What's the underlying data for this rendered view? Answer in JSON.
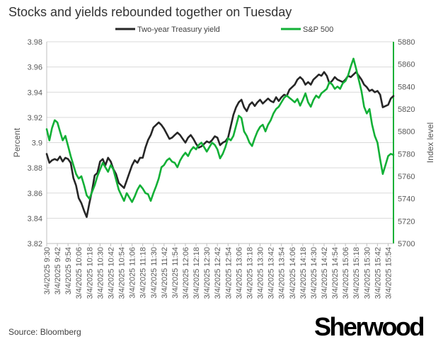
{
  "chart_data": {
    "type": "line",
    "title": "Stocks and yields rebounded together on Tuesday",
    "source": "Source: Bloomberg",
    "brand": "Sherwood",
    "y_left_label": "Percent",
    "y_right_label": "Index level",
    "y_left_lim": [
      3.82,
      3.98
    ],
    "y_left_ticks": [
      "3.82",
      "3.84",
      "3.86",
      "3.88",
      "3.9",
      "3.92",
      "3.94",
      "3.96",
      "3.98"
    ],
    "y_right_lim": [
      5700,
      5880
    ],
    "y_right_ticks": [
      "5700",
      "5720",
      "5740",
      "5760",
      "5780",
      "5800",
      "5820",
      "5840",
      "5860",
      "5880"
    ],
    "x_ticks": [
      "3/4/2025 9:30",
      "3/4/2025 9:42",
      "3/4/2025 9:54",
      "3/4/2025 10:06",
      "3/4/2025 10:18",
      "3/4/2025 10:30",
      "3/4/2025 10:42",
      "3/4/2025 10:54",
      "3/4/2025 11:06",
      "3/4/2025 11:18",
      "3/4/2025 11:30",
      "3/4/2025 11:42",
      "3/4/2025 11:54",
      "3/4/2025 12:06",
      "3/4/2025 12:18",
      "3/4/2025 12:30",
      "3/4/2025 12:42",
      "3/4/2025 12:54",
      "3/4/2025 13:06",
      "3/4/2025 13:18",
      "3/4/2025 13:30",
      "3/4/2025 13:42",
      "3/4/2025 13:54",
      "3/4/2025 14:06",
      "3/4/2025 14:18",
      "3/4/2025 14:30",
      "3/4/2025 14:42",
      "3/4/2025 14:54",
      "3/4/2025 15:06",
      "3/4/2025 15:18",
      "3/4/2025 15:30",
      "3/4/2025 15:42",
      "3/4/2025 15:54"
    ],
    "grid": true,
    "legend_position": "top",
    "series": [
      {
        "name": "Two-year Treasury yield",
        "color": "#262626",
        "axis": "left",
        "points": [
          [
            "9:30",
            3.891
          ],
          [
            "9:33",
            3.884
          ],
          [
            "9:36",
            3.886
          ],
          [
            "9:39",
            3.887
          ],
          [
            "9:42",
            3.886
          ],
          [
            "9:45",
            3.889
          ],
          [
            "9:48",
            3.885
          ],
          [
            "9:51",
            3.888
          ],
          [
            "9:54",
            3.887
          ],
          [
            "9:57",
            3.884
          ],
          [
            "10:00",
            3.872
          ],
          [
            "10:03",
            3.866
          ],
          [
            "10:06",
            3.856
          ],
          [
            "10:09",
            3.852
          ],
          [
            "10:12",
            3.846
          ],
          [
            "10:15",
            3.841
          ],
          [
            "10:18",
            3.852
          ],
          [
            "10:21",
            3.862
          ],
          [
            "10:24",
            3.874
          ],
          [
            "10:27",
            3.876
          ],
          [
            "10:30",
            3.885
          ],
          [
            "10:33",
            3.887
          ],
          [
            "10:36",
            3.882
          ],
          [
            "10:39",
            3.888
          ],
          [
            "10:42",
            3.885
          ],
          [
            "10:45",
            3.879
          ],
          [
            "10:48",
            3.875
          ],
          [
            "10:51",
            3.868
          ],
          [
            "10:54",
            3.866
          ],
          [
            "10:57",
            3.864
          ],
          [
            "11:00",
            3.87
          ],
          [
            "11:03",
            3.876
          ],
          [
            "11:06",
            3.882
          ],
          [
            "11:09",
            3.886
          ],
          [
            "11:12",
            3.884
          ],
          [
            "11:15",
            3.888
          ],
          [
            "11:18",
            3.888
          ],
          [
            "11:21",
            3.896
          ],
          [
            "11:24",
            3.902
          ],
          [
            "11:27",
            3.906
          ],
          [
            "11:30",
            3.912
          ],
          [
            "11:33",
            3.914
          ],
          [
            "11:36",
            3.916
          ],
          [
            "11:39",
            3.914
          ],
          [
            "11:42",
            3.911
          ],
          [
            "11:45",
            3.907
          ],
          [
            "11:48",
            3.903
          ],
          [
            "11:51",
            3.904
          ],
          [
            "11:54",
            3.906
          ],
          [
            "11:57",
            3.908
          ],
          [
            "12:00",
            3.906
          ],
          [
            "12:03",
            3.903
          ],
          [
            "12:06",
            3.9
          ],
          [
            "12:09",
            3.904
          ],
          [
            "12:12",
            3.906
          ],
          [
            "12:15",
            3.903
          ],
          [
            "12:18",
            3.899
          ],
          [
            "12:21",
            3.896
          ],
          [
            "12:24",
            3.897
          ],
          [
            "12:27",
            3.899
          ],
          [
            "12:30",
            3.901
          ],
          [
            "12:33",
            3.9
          ],
          [
            "12:36",
            3.902
          ],
          [
            "12:39",
            3.905
          ],
          [
            "12:42",
            3.904
          ],
          [
            "12:45",
            3.898
          ],
          [
            "12:48",
            3.9
          ],
          [
            "12:51",
            3.901
          ],
          [
            "12:54",
            3.904
          ],
          [
            "12:57",
            3.913
          ],
          [
            "13:00",
            3.922
          ],
          [
            "13:03",
            3.928
          ],
          [
            "13:06",
            3.932
          ],
          [
            "13:09",
            3.934
          ],
          [
            "13:12",
            3.928
          ],
          [
            "13:15",
            3.925
          ],
          [
            "13:18",
            3.93
          ],
          [
            "13:21",
            3.932
          ],
          [
            "13:24",
            3.929
          ],
          [
            "13:27",
            3.932
          ],
          [
            "13:30",
            3.934
          ],
          [
            "13:33",
            3.931
          ],
          [
            "13:36",
            3.933
          ],
          [
            "13:39",
            3.935
          ],
          [
            "13:42",
            3.933
          ],
          [
            "13:45",
            3.932
          ],
          [
            "13:48",
            3.936
          ],
          [
            "13:51",
            3.933
          ],
          [
            "13:54",
            3.936
          ],
          [
            "13:57",
            3.938
          ],
          [
            "14:00",
            3.937
          ],
          [
            "14:03",
            3.942
          ],
          [
            "14:06",
            3.944
          ],
          [
            "14:09",
            3.946
          ],
          [
            "14:12",
            3.95
          ],
          [
            "14:15",
            3.952
          ],
          [
            "14:18",
            3.95
          ],
          [
            "14:21",
            3.946
          ],
          [
            "14:24",
            3.948
          ],
          [
            "14:27",
            3.946
          ],
          [
            "14:30",
            3.95
          ],
          [
            "14:33",
            3.952
          ],
          [
            "14:36",
            3.954
          ],
          [
            "14:39",
            3.953
          ],
          [
            "14:42",
            3.956
          ],
          [
            "14:45",
            3.953
          ],
          [
            "14:48",
            3.947
          ],
          [
            "14:51",
            3.949
          ],
          [
            "14:54",
            3.952
          ],
          [
            "14:57",
            3.95
          ],
          [
            "15:00",
            3.949
          ],
          [
            "15:03",
            3.948
          ],
          [
            "15:06",
            3.95
          ],
          [
            "15:09",
            3.953
          ],
          [
            "15:12",
            3.952
          ],
          [
            "15:15",
            3.954
          ],
          [
            "15:18",
            3.956
          ],
          [
            "15:21",
            3.953
          ],
          [
            "15:24",
            3.95
          ],
          [
            "15:27",
            3.946
          ],
          [
            "15:30",
            3.944
          ],
          [
            "15:33",
            3.941
          ],
          [
            "15:36",
            3.942
          ],
          [
            "15:39",
            3.94
          ],
          [
            "15:42",
            3.941
          ],
          [
            "15:45",
            3.938
          ],
          [
            "15:48",
            3.928
          ],
          [
            "15:51",
            3.929
          ],
          [
            "15:54",
            3.93
          ],
          [
            "15:57",
            3.935
          ],
          [
            "16:00",
            3.937
          ]
        ]
      },
      {
        "name": "S&P 500",
        "color": "#12b036",
        "axis": "right",
        "points": [
          [
            "9:30",
            5802
          ],
          [
            "9:33",
            5792
          ],
          [
            "9:36",
            5803
          ],
          [
            "9:39",
            5810
          ],
          [
            "9:42",
            5808
          ],
          [
            "9:45",
            5800
          ],
          [
            "9:48",
            5792
          ],
          [
            "9:51",
            5796
          ],
          [
            "9:54",
            5787
          ],
          [
            "9:57",
            5778
          ],
          [
            "10:00",
            5770
          ],
          [
            "10:03",
            5762
          ],
          [
            "10:06",
            5758
          ],
          [
            "10:09",
            5760
          ],
          [
            "10:12",
            5752
          ],
          [
            "10:15",
            5743
          ],
          [
            "10:18",
            5740
          ],
          [
            "10:21",
            5746
          ],
          [
            "10:24",
            5752
          ],
          [
            "10:27",
            5760
          ],
          [
            "10:30",
            5766
          ],
          [
            "10:33",
            5772
          ],
          [
            "10:36",
            5768
          ],
          [
            "10:39",
            5764
          ],
          [
            "10:42",
            5770
          ],
          [
            "10:45",
            5766
          ],
          [
            "10:48",
            5757
          ],
          [
            "10:51",
            5748
          ],
          [
            "10:54",
            5743
          ],
          [
            "10:57",
            5738
          ],
          [
            "11:00",
            5745
          ],
          [
            "11:03",
            5741
          ],
          [
            "11:06",
            5737
          ],
          [
            "11:09",
            5742
          ],
          [
            "11:12",
            5748
          ],
          [
            "11:15",
            5752
          ],
          [
            "11:18",
            5749
          ],
          [
            "11:21",
            5745
          ],
          [
            "11:24",
            5744
          ],
          [
            "11:27",
            5738
          ],
          [
            "11:30",
            5745
          ],
          [
            "11:33",
            5751
          ],
          [
            "11:36",
            5758
          ],
          [
            "11:39",
            5768
          ],
          [
            "11:42",
            5770
          ],
          [
            "11:45",
            5774
          ],
          [
            "11:48",
            5776
          ],
          [
            "11:51",
            5773
          ],
          [
            "11:54",
            5772
          ],
          [
            "11:57",
            5768
          ],
          [
            "12:00",
            5774
          ],
          [
            "12:03",
            5778
          ],
          [
            "12:06",
            5781
          ],
          [
            "12:09",
            5778
          ],
          [
            "12:12",
            5783
          ],
          [
            "12:15",
            5786
          ],
          [
            "12:18",
            5784
          ],
          [
            "12:21",
            5788
          ],
          [
            "12:24",
            5790
          ],
          [
            "12:27",
            5786
          ],
          [
            "12:30",
            5782
          ],
          [
            "12:33",
            5786
          ],
          [
            "12:36",
            5790
          ],
          [
            "12:39",
            5788
          ],
          [
            "12:42",
            5784
          ],
          [
            "12:45",
            5776
          ],
          [
            "12:48",
            5780
          ],
          [
            "12:51",
            5786
          ],
          [
            "12:54",
            5794
          ],
          [
            "12:57",
            5792
          ],
          [
            "13:00",
            5796
          ],
          [
            "13:03",
            5805
          ],
          [
            "13:06",
            5814
          ],
          [
            "13:09",
            5812
          ],
          [
            "13:12",
            5800
          ],
          [
            "13:15",
            5796
          ],
          [
            "13:18",
            5790
          ],
          [
            "13:21",
            5787
          ],
          [
            "13:24",
            5794
          ],
          [
            "13:27",
            5800
          ],
          [
            "13:30",
            5804
          ],
          [
            "13:33",
            5806
          ],
          [
            "13:36",
            5800
          ],
          [
            "13:39",
            5806
          ],
          [
            "13:42",
            5810
          ],
          [
            "13:45",
            5816
          ],
          [
            "13:48",
            5820
          ],
          [
            "13:51",
            5822
          ],
          [
            "13:54",
            5826
          ],
          [
            "13:57",
            5830
          ],
          [
            "14:00",
            5832
          ],
          [
            "14:03",
            5830
          ],
          [
            "14:06",
            5828
          ],
          [
            "14:09",
            5826
          ],
          [
            "14:12",
            5829
          ],
          [
            "14:15",
            5823
          ],
          [
            "14:18",
            5828
          ],
          [
            "14:21",
            5834
          ],
          [
            "14:24",
            5826
          ],
          [
            "14:27",
            5822
          ],
          [
            "14:30",
            5828
          ],
          [
            "14:33",
            5832
          ],
          [
            "14:36",
            5830
          ],
          [
            "14:39",
            5834
          ],
          [
            "14:42",
            5836
          ],
          [
            "14:45",
            5838
          ],
          [
            "14:48",
            5844
          ],
          [
            "14:51",
            5842
          ],
          [
            "14:54",
            5838
          ],
          [
            "14:57",
            5840
          ],
          [
            "15:00",
            5838
          ],
          [
            "15:03",
            5843
          ],
          [
            "15:06",
            5845
          ],
          [
            "15:09",
            5850
          ],
          [
            "15:12",
            5858
          ],
          [
            "15:15",
            5865
          ],
          [
            "15:18",
            5856
          ],
          [
            "15:21",
            5846
          ],
          [
            "15:24",
            5836
          ],
          [
            "15:27",
            5822
          ],
          [
            "15:30",
            5816
          ],
          [
            "15:33",
            5820
          ],
          [
            "15:36",
            5806
          ],
          [
            "15:39",
            5796
          ],
          [
            "15:42",
            5790
          ],
          [
            "15:45",
            5775
          ],
          [
            "15:48",
            5762
          ],
          [
            "15:51",
            5770
          ],
          [
            "15:54",
            5778
          ],
          [
            "15:57",
            5780
          ],
          [
            "16:00",
            5779
          ]
        ]
      }
    ]
  }
}
